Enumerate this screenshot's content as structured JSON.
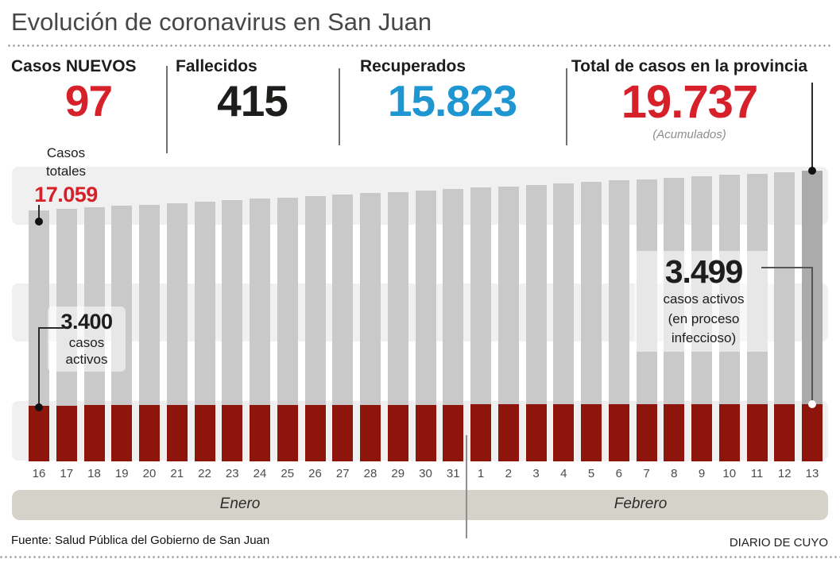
{
  "title": "Evolución de coronavirus en San Juan",
  "stats": [
    {
      "label": "Casos NUEVOS",
      "value": "97",
      "color": "#d6212b"
    },
    {
      "label": "Fallecidos",
      "value": "415",
      "color": "#1d1d1b"
    },
    {
      "label": "Recuperados",
      "value": "15.823",
      "color": "#1e96d2"
    },
    {
      "label": "Total de casos en la provincia",
      "value": "19.737",
      "note": "(Acumulados)",
      "color": "#d6212b"
    }
  ],
  "annotations": {
    "casos_totales": {
      "line1": "Casos",
      "line2": "totales",
      "value": "17.059"
    },
    "activos_inicio": {
      "value": "3.400",
      "line1": "casos",
      "line2": "activos"
    },
    "activos_fin": {
      "value": "3.499",
      "line1": "casos activos",
      "line2": "(en proceso",
      "line3": "infeccioso)"
    }
  },
  "footer": {
    "source": "Fuente: Salud Pública del Gobierno de San Juan",
    "credit": "DIARIO DE CUYO"
  },
  "colors": {
    "accent_red": "#d6212b",
    "accent_blue": "#1e96d2",
    "bar_gray": "#c9c9c9",
    "bar_gray_highlight": "#ababab",
    "bar_red": "#8d150b",
    "stripe": "#f1f0f0",
    "month_band": "#d5d2c9"
  },
  "chart_data": {
    "type": "bar",
    "title": "Evolución de coronavirus en San Juan",
    "categories": [
      "16",
      "17",
      "18",
      "19",
      "20",
      "21",
      "22",
      "23",
      "24",
      "25",
      "26",
      "27",
      "28",
      "29",
      "30",
      "31",
      "1",
      "2",
      "3",
      "4",
      "5",
      "6",
      "7",
      "8",
      "9",
      "10",
      "11",
      "12",
      "13"
    ],
    "months": [
      {
        "label": "Enero",
        "from": "16",
        "to": "31"
      },
      {
        "label": "Febrero",
        "from": "1",
        "to": "13"
      }
    ],
    "series": [
      {
        "name": "Casos totales (acumulados)",
        "color": "#c9c9c9",
        "values": [
          17059,
          17155,
          17250,
          17346,
          17442,
          17537,
          17633,
          17728,
          17824,
          17920,
          18015,
          18111,
          18207,
          18302,
          18398,
          18494,
          18589,
          18685,
          18780,
          18876,
          18972,
          19067,
          19163,
          19259,
          19354,
          19450,
          19546,
          19641,
          19737
        ]
      },
      {
        "name": "Casos activos (en proceso infeccioso)",
        "color": "#8d150b",
        "values": [
          3400,
          3404,
          3407,
          3411,
          3414,
          3418,
          3421,
          3425,
          3428,
          3432,
          3435,
          3439,
          3442,
          3446,
          3449,
          3453,
          3457,
          3460,
          3464,
          3467,
          3471,
          3474,
          3478,
          3481,
          3485,
          3488,
          3492,
          3495,
          3499
        ]
      }
    ],
    "labeled_points": {
      "first_total": 17059,
      "last_total": 19737,
      "first_active": 3400,
      "last_active": 3499
    },
    "ylim": [
      0,
      19737
    ],
    "grid": "three horizontal light bands",
    "legend_position": "none",
    "last_bar_highlighted": true
  }
}
